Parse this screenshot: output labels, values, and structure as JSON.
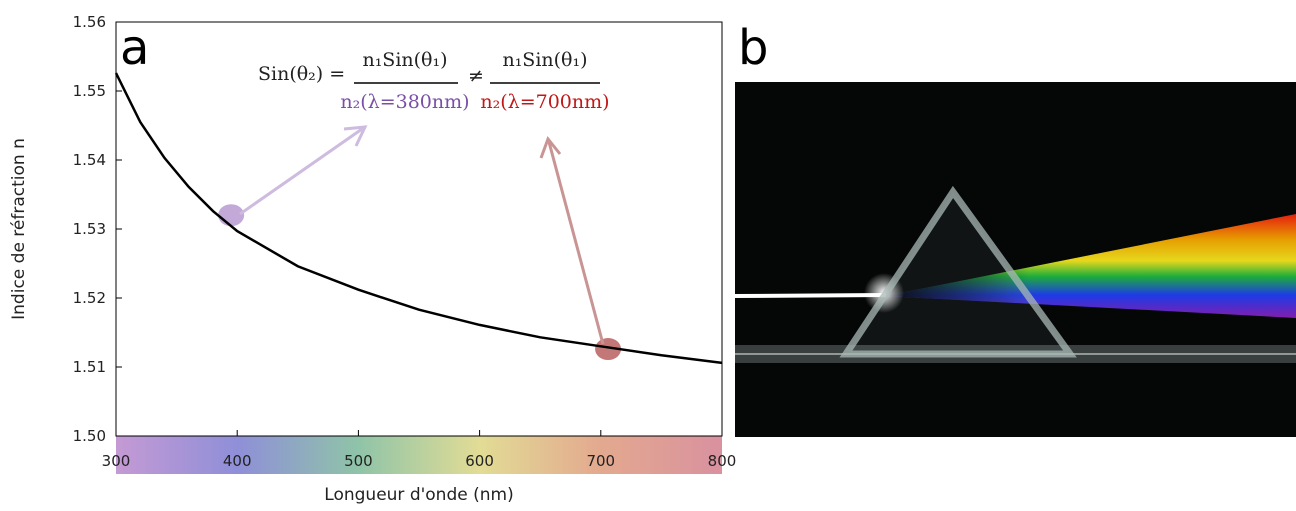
{
  "chart_data": {
    "type": "line",
    "x_label": "Longueur d'onde (nm)",
    "y_label": "Indice de réfraction n",
    "x": [
      300,
      320,
      340,
      360,
      380,
      400,
      450,
      500,
      550,
      600,
      650,
      700,
      750,
      800
    ],
    "values": [
      1.5526,
      1.5455,
      1.5403,
      1.5361,
      1.5326,
      1.5297,
      1.5246,
      1.5212,
      1.5183,
      1.5161,
      1.5143,
      1.513,
      1.5117,
      1.5106
    ],
    "color": "#000000",
    "xlim": [
      300,
      800
    ],
    "xticks": [
      300,
      400,
      500,
      600,
      700,
      800
    ],
    "ylim": [
      1.5,
      1.56
    ],
    "yticks": [
      {
        "value": 1.5,
        "label": "1.50"
      },
      1.51,
      1.52,
      1.53,
      1.54,
      1.55,
      1.56
    ],
    "highlights": [
      {
        "x": 395,
        "y": 1.532,
        "color": "#b79ad0"
      },
      {
        "x": 706,
        "y": 1.5126,
        "color": "#b8605f"
      }
    ],
    "annotations": {
      "lhs": "Sin(θ₂) =",
      "num1": "n₁Sin(θ₁)",
      "den1": "n₂(λ=380nm)",
      "neq": "≠",
      "num2": "n₁Sin(θ₁)",
      "den2": "n₂(λ=700nm)"
    },
    "panel_a": "a",
    "panel_b": "b"
  }
}
